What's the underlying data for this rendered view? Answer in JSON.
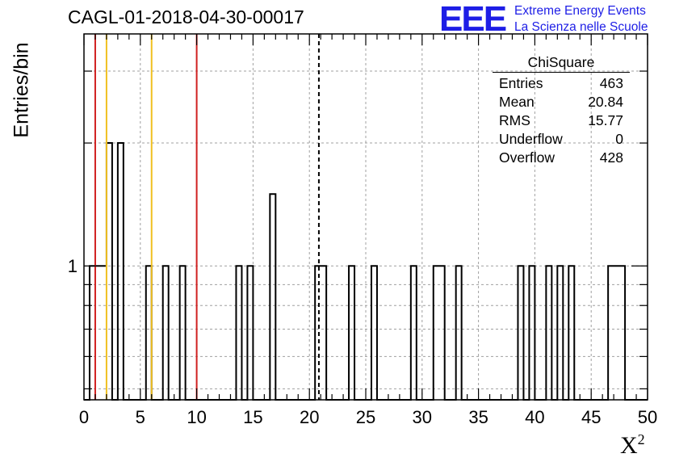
{
  "chart_data": {
    "type": "histogram",
    "title": "CAGL-01-2018-04-30-00017",
    "xlabel": "X",
    "xlabel_sup": "2",
    "ylabel": "Entries/bin",
    "xlim": [
      0,
      50
    ],
    "ylim": [
      0.47,
      3.7
    ],
    "yscale": "log",
    "grid": true,
    "x_ticks": [
      "0",
      "5",
      "10",
      "15",
      "20",
      "25",
      "30",
      "35",
      "40",
      "45",
      "50"
    ],
    "y_ticks": [
      "1"
    ],
    "bin_width": 0.5,
    "bins": [
      {
        "x": 0.5,
        "y": 1
      },
      {
        "x": 1.0,
        "y": 1
      },
      {
        "x": 1.5,
        "y": 1
      },
      {
        "x": 2.0,
        "y": 2
      },
      {
        "x": 3.0,
        "y": 2
      },
      {
        "x": 5.5,
        "y": 1
      },
      {
        "x": 7.0,
        "y": 1
      },
      {
        "x": 8.5,
        "y": 1
      },
      {
        "x": 13.5,
        "y": 1
      },
      {
        "x": 14.5,
        "y": 1
      },
      {
        "x": 16.5,
        "y": 1.5
      },
      {
        "x": 20.5,
        "y": 1
      },
      {
        "x": 21.0,
        "y": 1
      },
      {
        "x": 23.5,
        "y": 1
      },
      {
        "x": 25.5,
        "y": 1
      },
      {
        "x": 29.0,
        "y": 1
      },
      {
        "x": 31.0,
        "y": 1
      },
      {
        "x": 31.5,
        "y": 1
      },
      {
        "x": 33.0,
        "y": 1
      },
      {
        "x": 38.5,
        "y": 1
      },
      {
        "x": 39.5,
        "y": 1
      },
      {
        "x": 41.0,
        "y": 1
      },
      {
        "x": 42.0,
        "y": 1
      },
      {
        "x": 43.0,
        "y": 1
      },
      {
        "x": 46.5,
        "y": 1
      },
      {
        "x": 47.0,
        "y": 1
      },
      {
        "x": 47.5,
        "y": 1
      }
    ],
    "vertical_lines": [
      {
        "x": 1,
        "color": "#d02020",
        "style": "solid"
      },
      {
        "x": 2,
        "color": "#f0c020",
        "style": "solid"
      },
      {
        "x": 6,
        "color": "#f0c020",
        "style": "solid"
      },
      {
        "x": 10,
        "color": "#d02020",
        "style": "solid"
      },
      {
        "x": 20.84,
        "color": "#000000",
        "style": "dashed"
      }
    ],
    "stats_box": {
      "title": "ChiSquare",
      "rows": [
        {
          "label": "Entries",
          "value": "463"
        },
        {
          "label": "Mean",
          "value": "20.84"
        },
        {
          "label": "RMS",
          "value": "15.77"
        },
        {
          "label": "Underflow",
          "value": "0"
        },
        {
          "label": "Overflow",
          "value": "428"
        }
      ]
    }
  },
  "logo": {
    "mark": "EEE",
    "line1": "Extreme Energy Events",
    "line2": "La Scienza nelle Scuole",
    "color": "#1e1ee6"
  }
}
